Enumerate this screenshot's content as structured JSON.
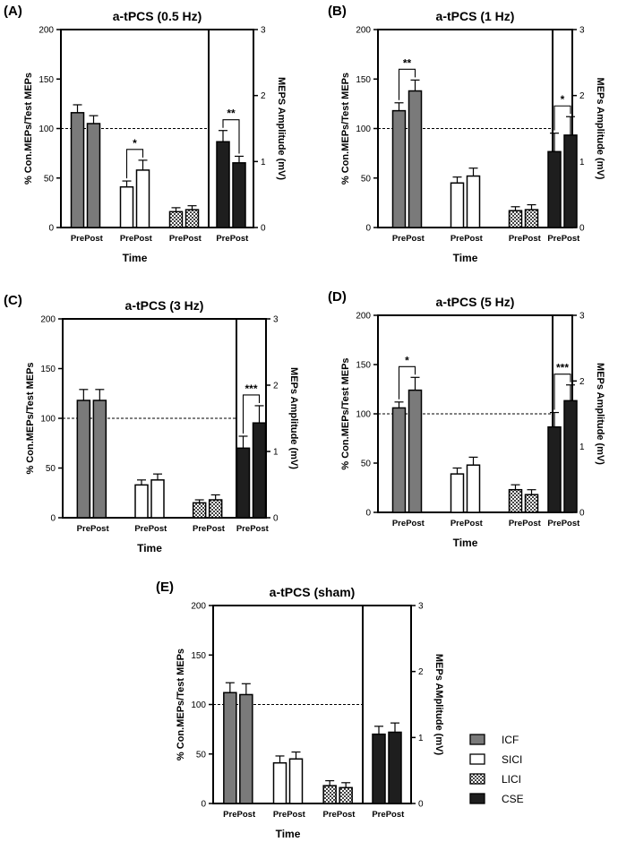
{
  "figure": {
    "legend": [
      {
        "key": "ICF",
        "label": "ICF"
      },
      {
        "key": "SICI",
        "label": "SICI"
      },
      {
        "key": "LICI",
        "label": "LICI"
      },
      {
        "key": "CSE",
        "label": "CSE"
      }
    ]
  },
  "chart_data": [
    {
      "panel": "(A)",
      "type": "bar",
      "title": "a-tPCS (0.5 Hz)",
      "xlabel": "Time",
      "ylabel": "% Con.MEPs/Test MEPs",
      "y2label": "MEPS Amplitude (mV)",
      "ylim": [
        0,
        200
      ],
      "yticks": [
        0,
        50,
        100,
        150,
        200
      ],
      "y2lim": [
        0,
        3
      ],
      "y2ticks": [
        0,
        1,
        2,
        3
      ],
      "reference_line": 100,
      "categories": [
        "Pre",
        "Post"
      ],
      "series": [
        {
          "name": "ICF",
          "axis": "left",
          "values": [
            116,
            105
          ],
          "errors": [
            8,
            8
          ]
        },
        {
          "name": "SICI",
          "axis": "left",
          "values": [
            41,
            58
          ],
          "errors": [
            6,
            10
          ]
        },
        {
          "name": "LICI",
          "axis": "left",
          "values": [
            16,
            18
          ],
          "errors": [
            4,
            4
          ]
        },
        {
          "name": "CSE",
          "axis": "right",
          "values": [
            1.3,
            0.98
          ],
          "errors": [
            0.17,
            0.1
          ]
        }
      ],
      "significance": [
        {
          "series": "SICI",
          "label": "*"
        },
        {
          "series": "CSE",
          "label": "**"
        }
      ]
    },
    {
      "panel": "(B)",
      "type": "bar",
      "title": "a-tPCS (1 Hz)",
      "xlabel": "Time",
      "ylabel": "% Con.MEPs/Test MEPs",
      "y2label": "MEPs Amplitude (mV)",
      "ylim": [
        0,
        200
      ],
      "yticks": [
        0,
        50,
        100,
        150,
        200
      ],
      "y2lim": [
        0,
        3
      ],
      "y2ticks": [
        0,
        1,
        2,
        3
      ],
      "reference_line": 100,
      "categories": [
        "Pre",
        "Post"
      ],
      "series": [
        {
          "name": "ICF",
          "axis": "left",
          "values": [
            118,
            138
          ],
          "errors": [
            8,
            11
          ]
        },
        {
          "name": "SICI",
          "axis": "left",
          "values": [
            45,
            52
          ],
          "errors": [
            6,
            8
          ]
        },
        {
          "name": "LICI",
          "axis": "left",
          "values": [
            17,
            18
          ],
          "errors": [
            4,
            5
          ]
        },
        {
          "name": "CSE",
          "axis": "right",
          "values": [
            1.15,
            1.4
          ],
          "errors": [
            0.28,
            0.28
          ]
        }
      ],
      "significance": [
        {
          "series": "ICF",
          "label": "**"
        },
        {
          "series": "CSE",
          "label": "*"
        }
      ]
    },
    {
      "panel": "(C)",
      "type": "bar",
      "title": "a-tPCS (3 Hz)",
      "xlabel": "Time",
      "ylabel": "% Con.MEPs/Test MEPs",
      "y2label": "MEPs Amplitude (mV)",
      "ylim": [
        0,
        200
      ],
      "yticks": [
        0,
        50,
        100,
        150,
        200
      ],
      "y2lim": [
        0,
        3
      ],
      "y2ticks": [
        0,
        1,
        2,
        3
      ],
      "reference_line": 100,
      "categories": [
        "Pre",
        "Post"
      ],
      "series": [
        {
          "name": "ICF",
          "axis": "left",
          "values": [
            118,
            118
          ],
          "errors": [
            11,
            11
          ]
        },
        {
          "name": "SICI",
          "axis": "left",
          "values": [
            33,
            38
          ],
          "errors": [
            5,
            6
          ]
        },
        {
          "name": "LICI",
          "axis": "left",
          "values": [
            15,
            18
          ],
          "errors": [
            3,
            5
          ]
        },
        {
          "name": "CSE",
          "axis": "right",
          "values": [
            1.05,
            1.43
          ],
          "errors": [
            0.18,
            0.26
          ]
        }
      ],
      "significance": [
        {
          "series": "CSE",
          "label": "***"
        }
      ]
    },
    {
      "panel": "(D)",
      "type": "bar",
      "title": "a-tPCS (5 Hz)",
      "xlabel": "Time",
      "ylabel": "% Con.MEPs/Test MEPs",
      "y2label": "MEPs Amplitude (mV)",
      "ylim": [
        0,
        200
      ],
      "yticks": [
        0,
        50,
        100,
        150,
        200
      ],
      "y2lim": [
        0,
        3
      ],
      "y2ticks": [
        0,
        1,
        2,
        3
      ],
      "reference_line": 100,
      "categories": [
        "Pre",
        "Post"
      ],
      "series": [
        {
          "name": "ICF",
          "axis": "left",
          "values": [
            106,
            124
          ],
          "errors": [
            6,
            13
          ]
        },
        {
          "name": "SICI",
          "axis": "left",
          "values": [
            39,
            48
          ],
          "errors": [
            6,
            8
          ]
        },
        {
          "name": "LICI",
          "axis": "left",
          "values": [
            23,
            18
          ],
          "errors": [
            5,
            5
          ]
        },
        {
          "name": "CSE",
          "axis": "right",
          "values": [
            1.3,
            1.7
          ],
          "errors": [
            0.22,
            0.24
          ]
        }
      ],
      "significance": [
        {
          "series": "ICF",
          "label": "*"
        },
        {
          "series": "CSE",
          "label": "***"
        }
      ]
    },
    {
      "panel": "(E)",
      "type": "bar",
      "title": "a-tPCS (sham)",
      "xlabel": "Time",
      "ylabel": "% Con.MEPs/Test MEPs",
      "y2label": "MEPs AMplitude (mV)",
      "ylim": [
        0,
        200
      ],
      "yticks": [
        0,
        50,
        100,
        150,
        200
      ],
      "y2lim": [
        0,
        3
      ],
      "y2ticks": [
        0,
        1,
        2,
        3
      ],
      "reference_line": 100,
      "categories": [
        "Pre",
        "Post"
      ],
      "series": [
        {
          "name": "ICF",
          "axis": "left",
          "values": [
            112,
            110
          ],
          "errors": [
            10,
            11
          ]
        },
        {
          "name": "SICI",
          "axis": "left",
          "values": [
            41,
            45
          ],
          "errors": [
            7,
            7
          ]
        },
        {
          "name": "LICI",
          "axis": "left",
          "values": [
            18,
            16
          ],
          "errors": [
            5,
            5
          ]
        },
        {
          "name": "CSE",
          "axis": "right",
          "values": [
            1.05,
            1.08
          ],
          "errors": [
            0.12,
            0.14
          ]
        }
      ],
      "significance": []
    }
  ]
}
